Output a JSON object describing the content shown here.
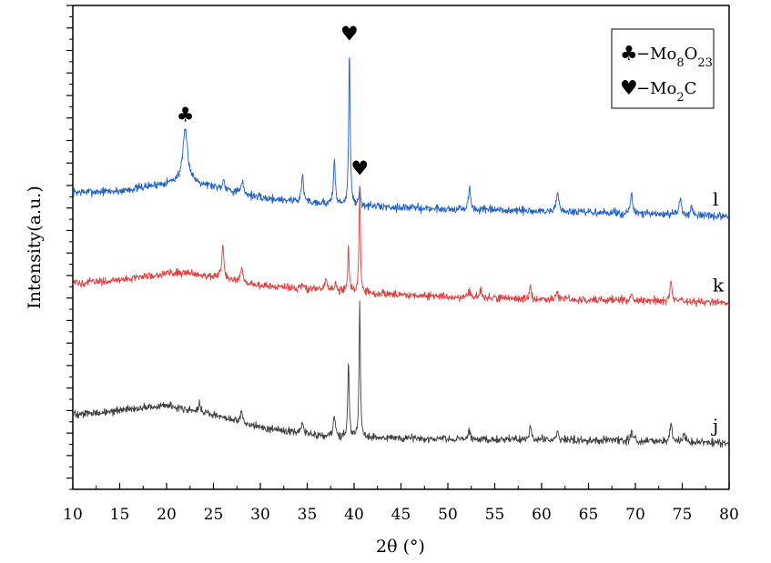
{
  "chart_data": {
    "type": "line",
    "xlabel": "2θ (°)",
    "ylabel": "Intensity(a.u.)",
    "xlim": [
      10,
      80
    ],
    "x_ticks": [
      "10",
      "15",
      "20",
      "25",
      "30",
      "35",
      "40",
      "45",
      "50",
      "55",
      "60",
      "65",
      "70",
      "75",
      "80"
    ],
    "legend_position": "top-right",
    "legend": [
      {
        "symbol": "♣",
        "text": "−Mo8O23"
      },
      {
        "symbol": "♥",
        "text": "−Mo2C"
      }
    ],
    "series": [
      {
        "label": "l",
        "color": "#1f5fc6",
        "baseline": [
          [
            10,
            -0.3
          ],
          [
            15,
            -0.25
          ],
          [
            20,
            0.1
          ],
          [
            22,
            0.25
          ],
          [
            25,
            -0.05
          ],
          [
            30,
            -0.55
          ],
          [
            40,
            -0.9
          ],
          [
            50,
            -1.05
          ],
          [
            60,
            -1.15
          ],
          [
            70,
            -1.25
          ],
          [
            80,
            -1.4
          ]
        ],
        "peaks": [
          [
            22,
            2.2,
            0.3
          ],
          [
            26.1,
            0.4,
            0.15
          ],
          [
            28.1,
            0.5,
            0.15
          ],
          [
            34.5,
            1.2,
            0.12
          ],
          [
            37.9,
            2.1,
            0.1
          ],
          [
            39.5,
            6.9,
            0.09
          ],
          [
            40.6,
            0.7,
            0.1
          ],
          [
            52.3,
            1.0,
            0.12
          ],
          [
            61.7,
            0.9,
            0.15
          ],
          [
            69.6,
            0.9,
            0.12
          ],
          [
            74.8,
            0.75,
            0.15
          ],
          [
            76.0,
            0.4,
            0.15
          ]
        ],
        "noise": 0.13
      },
      {
        "label": "k",
        "color": "#e03c3c",
        "baseline": [
          [
            10,
            -4.35
          ],
          [
            15,
            -4.2
          ],
          [
            20,
            -3.9
          ],
          [
            22,
            -3.85
          ],
          [
            25,
            -4.05
          ],
          [
            30,
            -4.45
          ],
          [
            40,
            -4.75
          ],
          [
            50,
            -4.95
          ],
          [
            60,
            -5.05
          ],
          [
            70,
            -5.1
          ],
          [
            80,
            -5.2
          ]
        ],
        "peaks": [
          [
            26.0,
            1.5,
            0.12
          ],
          [
            28.0,
            0.6,
            0.12
          ],
          [
            34.5,
            0.3,
            0.12
          ],
          [
            37.0,
            0.5,
            0.15
          ],
          [
            38.0,
            0.3,
            0.12
          ],
          [
            39.4,
            2.0,
            0.09
          ],
          [
            40.6,
            4.8,
            0.08
          ],
          [
            52.3,
            0.3,
            0.12
          ],
          [
            53.5,
            0.3,
            0.15
          ],
          [
            58.8,
            0.6,
            0.1
          ],
          [
            61.7,
            0.3,
            0.12
          ],
          [
            69.6,
            0.3,
            0.12
          ],
          [
            73.8,
            0.9,
            0.12
          ]
        ],
        "noise": 0.12
      },
      {
        "label": "j",
        "color": "#3c3c3c",
        "baseline": [
          [
            10,
            -10.2
          ],
          [
            15,
            -10.0
          ],
          [
            20,
            -9.75
          ],
          [
            25,
            -10.2
          ],
          [
            30,
            -10.75
          ],
          [
            35,
            -11.05
          ],
          [
            40,
            -11.2
          ],
          [
            50,
            -11.25
          ],
          [
            60,
            -11.3
          ],
          [
            70,
            -11.35
          ],
          [
            80,
            -11.45
          ]
        ],
        "peaks": [
          [
            23.5,
            0.4,
            0.12
          ],
          [
            28.0,
            0.5,
            0.12
          ],
          [
            34.5,
            0.5,
            0.12
          ],
          [
            37.9,
            0.9,
            0.12
          ],
          [
            39.4,
            3.5,
            0.09
          ],
          [
            40.6,
            6.0,
            0.08
          ],
          [
            52.3,
            0.4,
            0.12
          ],
          [
            58.8,
            0.7,
            0.1
          ],
          [
            61.7,
            0.4,
            0.12
          ],
          [
            69.6,
            0.4,
            0.12
          ],
          [
            73.8,
            0.9,
            0.12
          ],
          [
            75.2,
            0.3,
            0.15
          ]
        ],
        "noise": 0.12
      }
    ],
    "annotations": [
      {
        "symbol": "♣",
        "x": 22.0,
        "series": "l"
      },
      {
        "symbol": "♥",
        "x": 39.5,
        "series": "l"
      },
      {
        "symbol": "♥",
        "x": 40.6,
        "series": "k"
      }
    ]
  }
}
